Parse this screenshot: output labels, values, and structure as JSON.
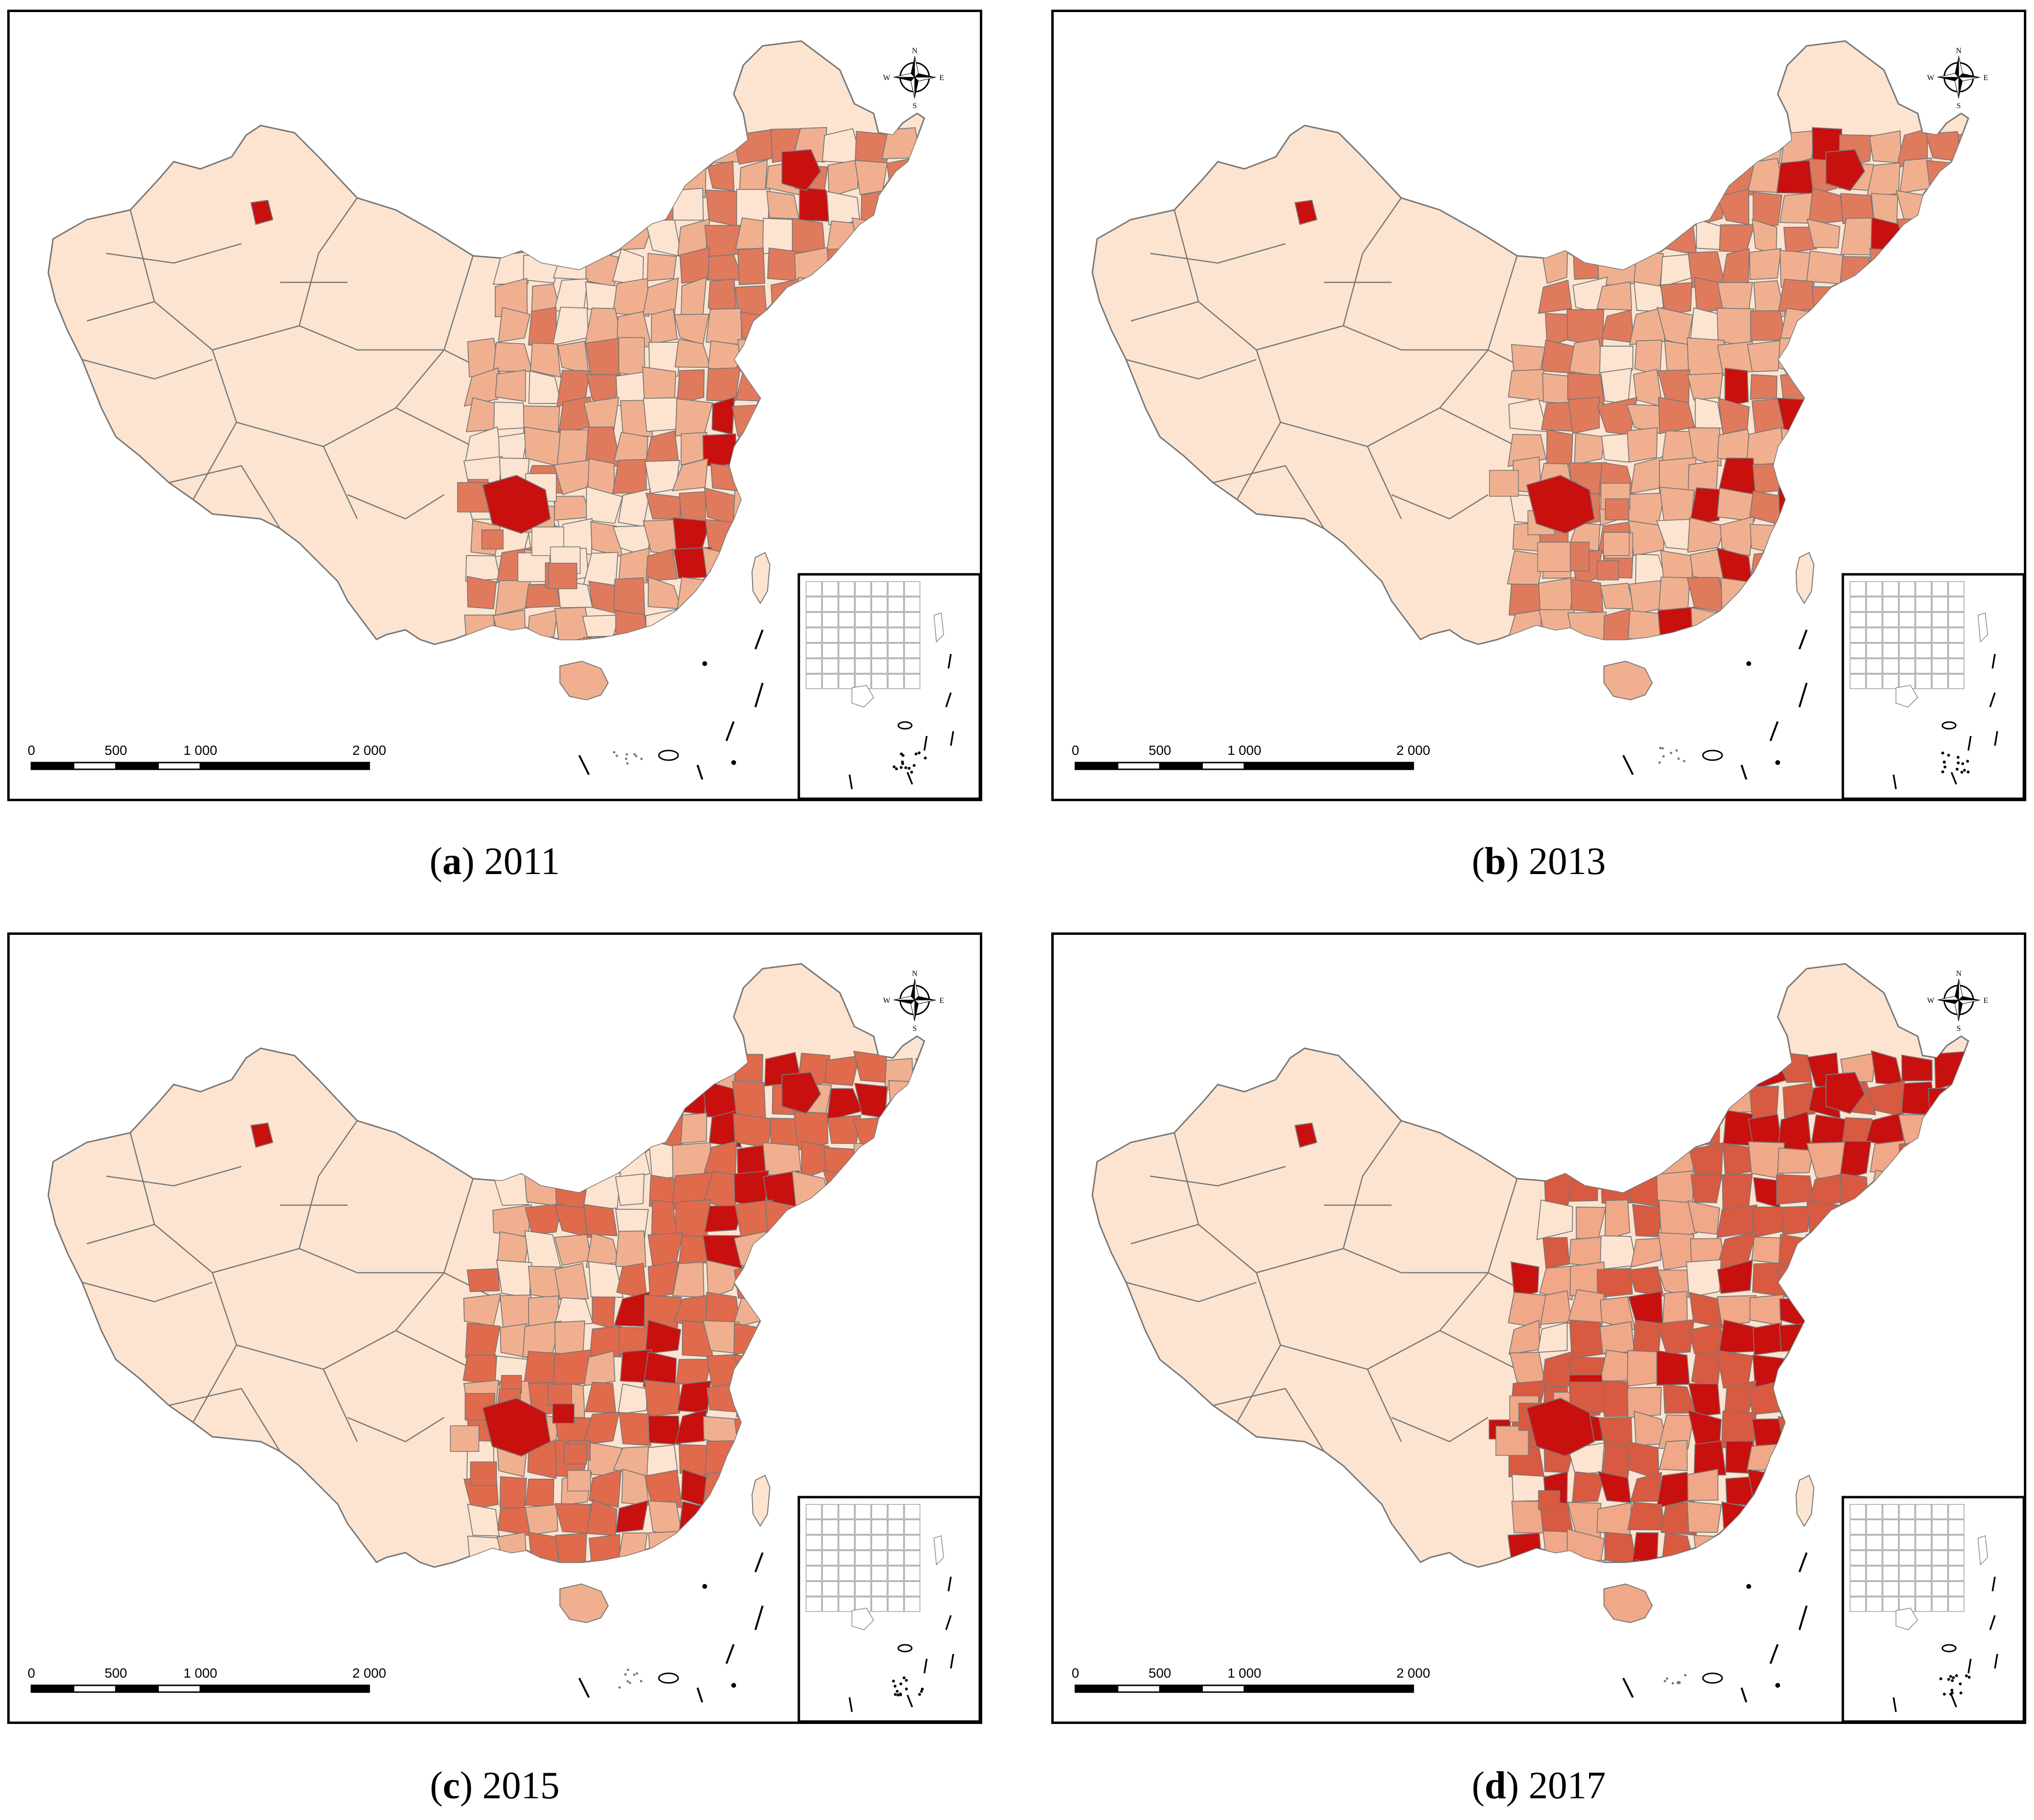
{
  "panels": [
    {
      "letter": "a",
      "year": "2011",
      "palette": {
        "hi": "#c8100f",
        "md": "#e07a5c",
        "lo": "#f0b090",
        "vl": "#fde4d0"
      }
    },
    {
      "letter": "b",
      "year": "2013",
      "palette": {
        "hi": "#c8100f",
        "md": "#e07a5c",
        "lo": "#f0b090",
        "vl": "#fde4d0"
      }
    },
    {
      "letter": "c",
      "year": "2015",
      "palette": {
        "hi": "#c8100f",
        "md": "#e06a4c",
        "lo": "#f0b090",
        "vl": "#fde4d0"
      }
    },
    {
      "letter": "d",
      "year": "2017",
      "palette": {
        "hi": "#c8100f",
        "md": "#d85a40",
        "lo": "#f0a888",
        "vl": "#fde4d0"
      }
    }
  ],
  "scale_bar": {
    "labels": [
      "0",
      "500",
      "1 000",
      "2 000"
    ]
  },
  "compass": {
    "n": "N",
    "s": "S",
    "e": "E",
    "w": "W"
  },
  "colors": {
    "border": "#000000",
    "region_stroke": "#777777"
  }
}
